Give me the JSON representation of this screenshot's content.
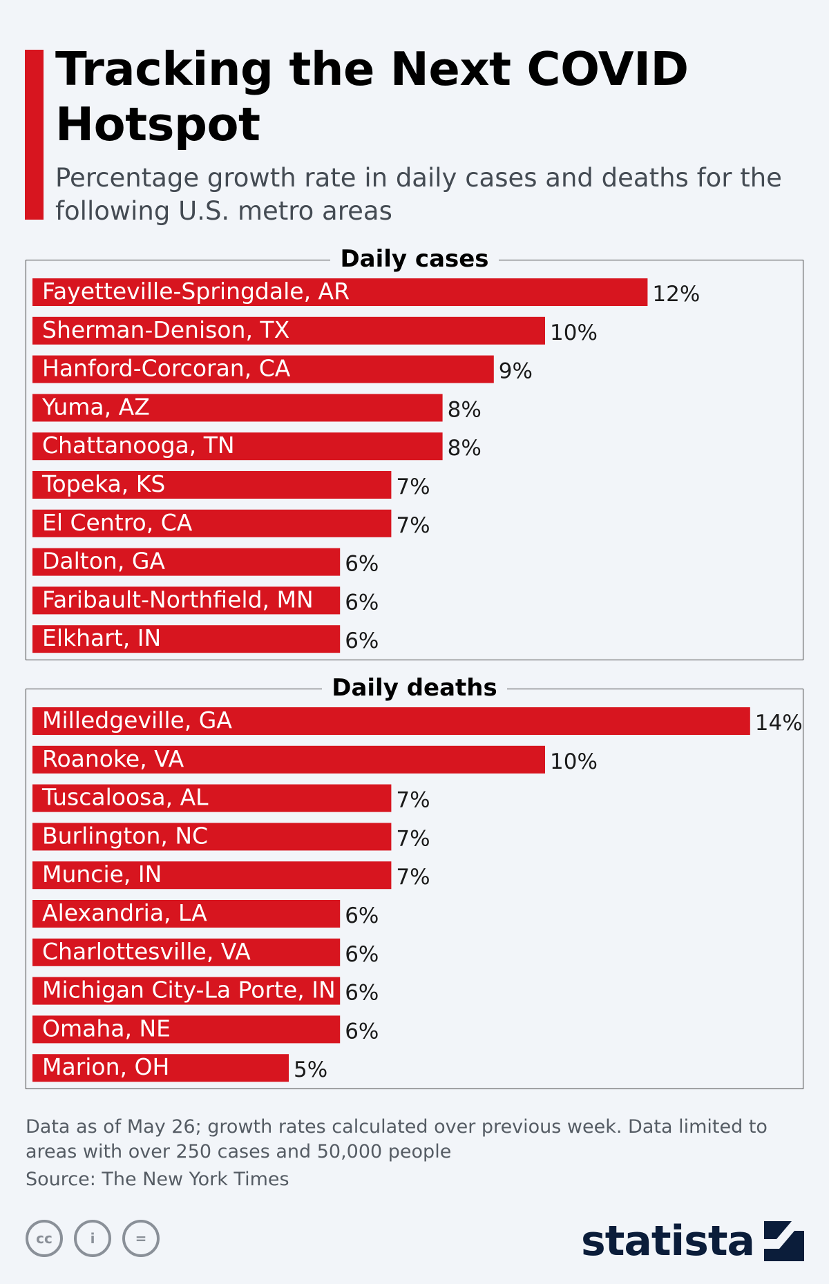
{
  "header": {
    "title": "Tracking the Next COVID Hotspot",
    "subtitle": "Percentage growth rate in daily cases and deaths for the following U.S. metro areas"
  },
  "colors": {
    "accent": "#d7151f",
    "bar": "#d7151f",
    "background": "#f2f5f9",
    "brand": "#0b1d3a"
  },
  "chart_data": [
    {
      "type": "bar",
      "orientation": "horizontal",
      "title": "Daily cases",
      "unit": "%",
      "xlim": [
        0,
        14
      ],
      "categories": [
        "Fayetteville-Springdale, AR",
        "Sherman-Denison, TX",
        "Hanford-Corcoran, CA",
        "Yuma, AZ",
        "Chattanooga, TN",
        "Topeka, KS",
        "El Centro, CA",
        "Dalton, GA",
        "Faribault-Northfield, MN",
        "Elkhart, IN"
      ],
      "values": [
        12,
        10,
        9,
        8,
        8,
        7,
        7,
        6,
        6,
        6
      ],
      "grid": false,
      "legend": "none"
    },
    {
      "type": "bar",
      "orientation": "horizontal",
      "title": "Daily deaths",
      "unit": "%",
      "xlim": [
        0,
        14
      ],
      "categories": [
        "Milledgeville, GA",
        "Roanoke, VA",
        "Tuscaloosa, AL",
        "Burlington, NC",
        "Muncie, IN",
        "Alexandria, LA",
        "Charlottesville, VA",
        "Michigan City-La Porte, IN",
        "Omaha, NE",
        "Marion, OH"
      ],
      "values": [
        14,
        10,
        7,
        7,
        7,
        6,
        6,
        6,
        6,
        5
      ],
      "grid": false,
      "legend": "none"
    }
  ],
  "footer": {
    "note": "Data as of May 26; growth rates calculated over previous week. Data limited to areas with over 250 cases and 50,000 people",
    "source": "Source: The New York Times",
    "license_icons": [
      "cc-icon",
      "attribution-icon",
      "no-derivatives-icon"
    ],
    "license_labels": {
      "cc": "cc",
      "by": "i",
      "nd": "="
    },
    "brand": "statista"
  }
}
